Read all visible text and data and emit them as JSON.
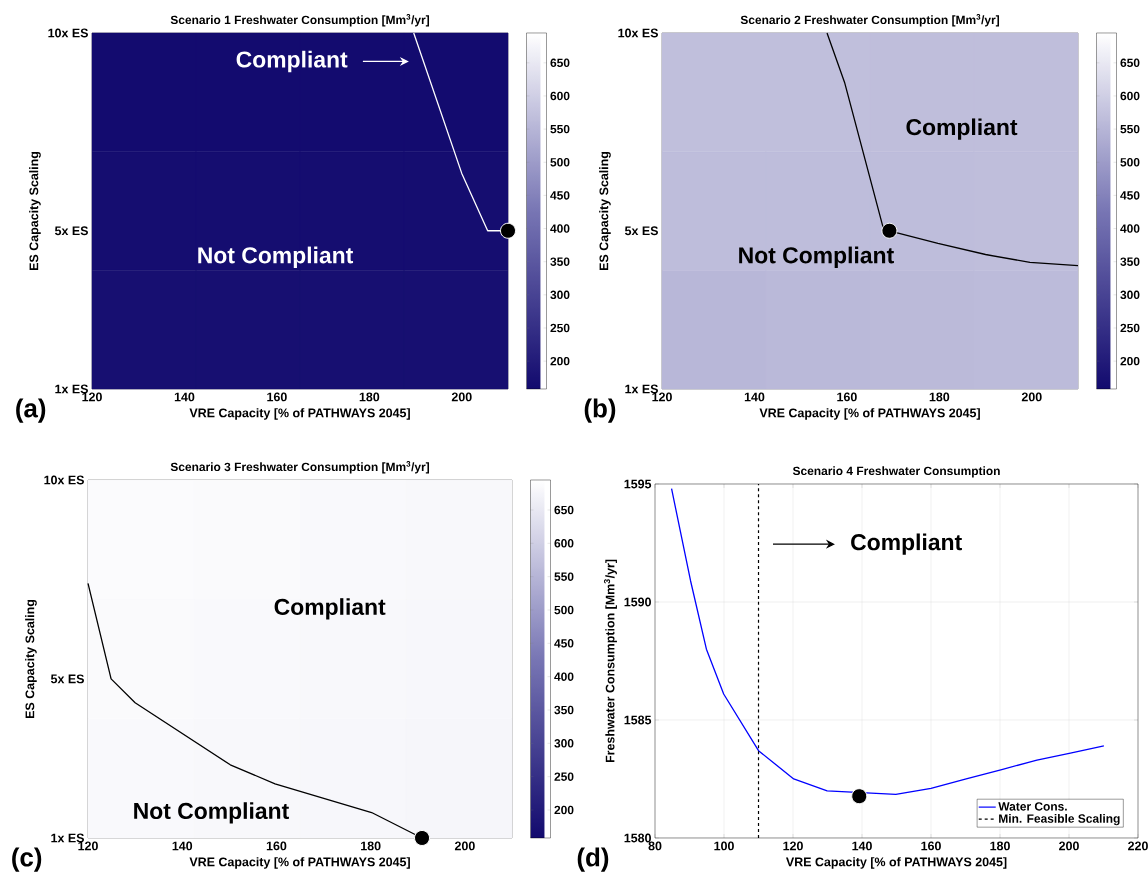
{
  "chart_data": [
    {
      "type": "heatmap",
      "title": "Scenario 1 Freshwater Consumption [Mm$^{3}$/yr]",
      "xlabel": "VRE Capacity [% of PATHWAYS 2045]",
      "ylabel": "ES Capacity Scaling",
      "xlim": [
        120,
        210
      ],
      "xticks": [
        120,
        140,
        160,
        180,
        200
      ],
      "ylim": [
        1,
        10
      ],
      "yticks": [
        {
          "value": 1,
          "label": "1x ES"
        },
        {
          "value": 5,
          "label": "5x ES"
        },
        {
          "value": 10,
          "label": "10x ES"
        }
      ],
      "cells": [
        [
          160,
          160,
          160,
          160
        ],
        [
          165,
          165,
          165,
          165
        ],
        [
          170,
          170,
          170,
          170
        ]
      ],
      "clim": [
        158,
        695
      ],
      "cticks": [
        200,
        250,
        300,
        350,
        400,
        450,
        500,
        550,
        600,
        650
      ],
      "series": [
        {
          "type": "line",
          "color": "#ffffff",
          "x": [
            189.6,
            200,
            205.6,
            210
          ],
          "values": [
            10,
            6.45,
            5,
            5
          ]
        },
        {
          "type": "scatter",
          "color": "#000000",
          "x": [
            210
          ],
          "values": [
            5
          ]
        }
      ],
      "annotations": [
        "Compliant",
        "Not Compliant",
        "(a)"
      ]
    },
    {
      "type": "heatmap",
      "title": "Scenario 2 Freshwater Consumption [Mm$^{3}$/yr]",
      "xlabel": "VRE Capacity [% of PATHWAYS 2045]",
      "ylabel": "ES Capacity Scaling",
      "xlim": [
        120,
        210
      ],
      "xticks": [
        120,
        140,
        160,
        180,
        200
      ],
      "ylim": [
        1,
        10
      ],
      "yticks": [
        {
          "value": 1,
          "label": "1x ES"
        },
        {
          "value": 5,
          "label": "5x ES"
        },
        {
          "value": 10,
          "label": "10x ES"
        }
      ],
      "cells": [
        [
          570,
          570,
          568,
          568
        ],
        [
          565,
          565,
          565,
          568
        ],
        [
          555,
          558,
          560,
          562
        ]
      ],
      "clim": [
        158,
        695
      ],
      "cticks": [
        200,
        250,
        300,
        350,
        400,
        450,
        500,
        550,
        600,
        650
      ],
      "series": [
        {
          "type": "line",
          "color": "#000000",
          "x": [
            155.7,
            159.5,
            167.8,
            169.2,
            179.7,
            190,
            199.6,
            210
          ],
          "values": [
            10,
            8.75,
            5.1,
            5,
            4.68,
            4.4,
            4.2,
            4.12
          ]
        },
        {
          "type": "scatter",
          "color": "#000000",
          "x": [
            169.2
          ],
          "values": [
            5
          ]
        }
      ],
      "annotations": [
        "Compliant",
        "Not Compliant",
        "(b)"
      ]
    },
    {
      "type": "heatmap",
      "title": "Scenario 3 Freshwater Consumption [Mm$^{3}$/yr]",
      "xlabel": "VRE Capacity [% of PATHWAYS 2045]",
      "ylabel": "ES Capacity Scaling",
      "xlim": [
        120,
        210
      ],
      "xticks": [
        120,
        140,
        160,
        180,
        200
      ],
      "ylim": [
        1,
        10
      ],
      "yticks": [
        {
          "value": 1,
          "label": "1x ES"
        },
        {
          "value": 5,
          "label": "5x ES"
        },
        {
          "value": 10,
          "label": "10x ES"
        }
      ],
      "cells": [
        [
          688,
          686,
          684,
          682
        ],
        [
          686,
          684,
          682,
          680
        ],
        [
          684,
          682,
          680,
          678
        ]
      ],
      "clim": [
        158,
        695
      ],
      "cticks": [
        200,
        250,
        300,
        350,
        400,
        450,
        500,
        550,
        600,
        650
      ],
      "series": [
        {
          "type": "line",
          "color": "#000000",
          "x": [
            120,
            124.9,
            130,
            150.2,
            159.7,
            180.2,
            188.9,
            190.9
          ],
          "values": [
            7.4,
            5,
            4.4,
            2.84,
            2.36,
            1.64,
            1.12,
            1
          ]
        },
        {
          "type": "scatter",
          "color": "#000000",
          "x": [
            190.9
          ],
          "values": [
            1
          ]
        }
      ],
      "annotations": [
        "Compliant",
        "Not Compliant",
        "(c)"
      ]
    },
    {
      "type": "line",
      "title": "Scenario 4 Freshwater Consumption",
      "xlabel": "VRE Capacity [% of PATHWAYS 2045]",
      "ylabel": "Freshwater Consumption [Mm$^{3}$/yr]",
      "xlim": [
        80,
        220
      ],
      "xticks": [
        80,
        100,
        120,
        140,
        160,
        180,
        200,
        220
      ],
      "ylim": [
        1580,
        1595
      ],
      "yticks": [
        1580,
        1585,
        1590,
        1595
      ],
      "grid": true,
      "legend": "bottom right",
      "series": [
        {
          "name": "Water Cons.",
          "color": "#0000ff",
          "marker": "none",
          "x": [
            84.8,
            90.3,
            94.9,
            99.9,
            110,
            120.2,
            129.9,
            149.8,
            160,
            170.2,
            180.5,
            190.7,
            200.4,
            210.1
          ],
          "values": [
            1594.8,
            1590.9,
            1588.0,
            1586.1,
            1583.7,
            1582.5,
            1582.0,
            1581.85,
            1582.1,
            1582.5,
            1582.9,
            1583.3,
            1583.6,
            1583.9
          ]
        },
        {
          "type": "scatter",
          "color": "#000000",
          "x": [
            139.2
          ],
          "values": [
            1581.77
          ]
        }
      ],
      "ref_lines": [
        {
          "axis": "x",
          "value": 110,
          "label": "Min. Feasible Scaling",
          "line_style": "dashed",
          "color": "#000000"
        }
      ],
      "annotations": [
        "Compliant",
        "(d)"
      ]
    }
  ]
}
